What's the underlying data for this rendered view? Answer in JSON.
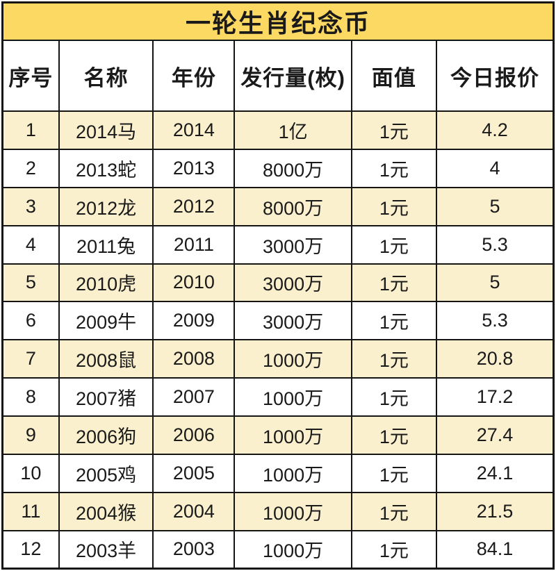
{
  "title": "一轮生肖纪念币",
  "table": {
    "headers": [
      "序号",
      "名称",
      "年份",
      "发行量(枚)",
      "面值",
      "今日报价"
    ],
    "column_widths_pct": [
      10.25,
      17.1,
      14.75,
      21.25,
      15.4,
      21.25
    ],
    "rows": [
      [
        "1",
        "2014马",
        "2014",
        "1亿",
        "1元",
        "4.2"
      ],
      [
        "2",
        "2013蛇",
        "2013",
        "8000万",
        "1元",
        "4"
      ],
      [
        "3",
        "2012龙",
        "2012",
        "8000万",
        "1元",
        "5"
      ],
      [
        "4",
        "2011兔",
        "2011",
        "3000万",
        "1元",
        "5.3"
      ],
      [
        "5",
        "2010虎",
        "2010",
        "3000万",
        "1元",
        "5"
      ],
      [
        "6",
        "2009牛",
        "2009",
        "3000万",
        "1元",
        "5.3"
      ],
      [
        "7",
        "2008鼠",
        "2008",
        "1000万",
        "1元",
        "20.8"
      ],
      [
        "8",
        "2007猪",
        "2007",
        "1000万",
        "1元",
        "17.2"
      ],
      [
        "9",
        "2006狗",
        "2006",
        "1000万",
        "1元",
        "27.4"
      ],
      [
        "10",
        "2005鸡",
        "2005",
        "1000万",
        "1元",
        "24.1"
      ],
      [
        "11",
        "2004猴",
        "2004",
        "1000万",
        "1元",
        "21.5"
      ],
      [
        "12",
        "2003羊",
        "2003",
        "1000万",
        "1元",
        "84.1"
      ]
    ]
  },
  "colors": {
    "title_bg": "#FCD962",
    "stripe_bg": "#FAF0CD",
    "border": "#141414",
    "text": "#1A1A1A"
  }
}
